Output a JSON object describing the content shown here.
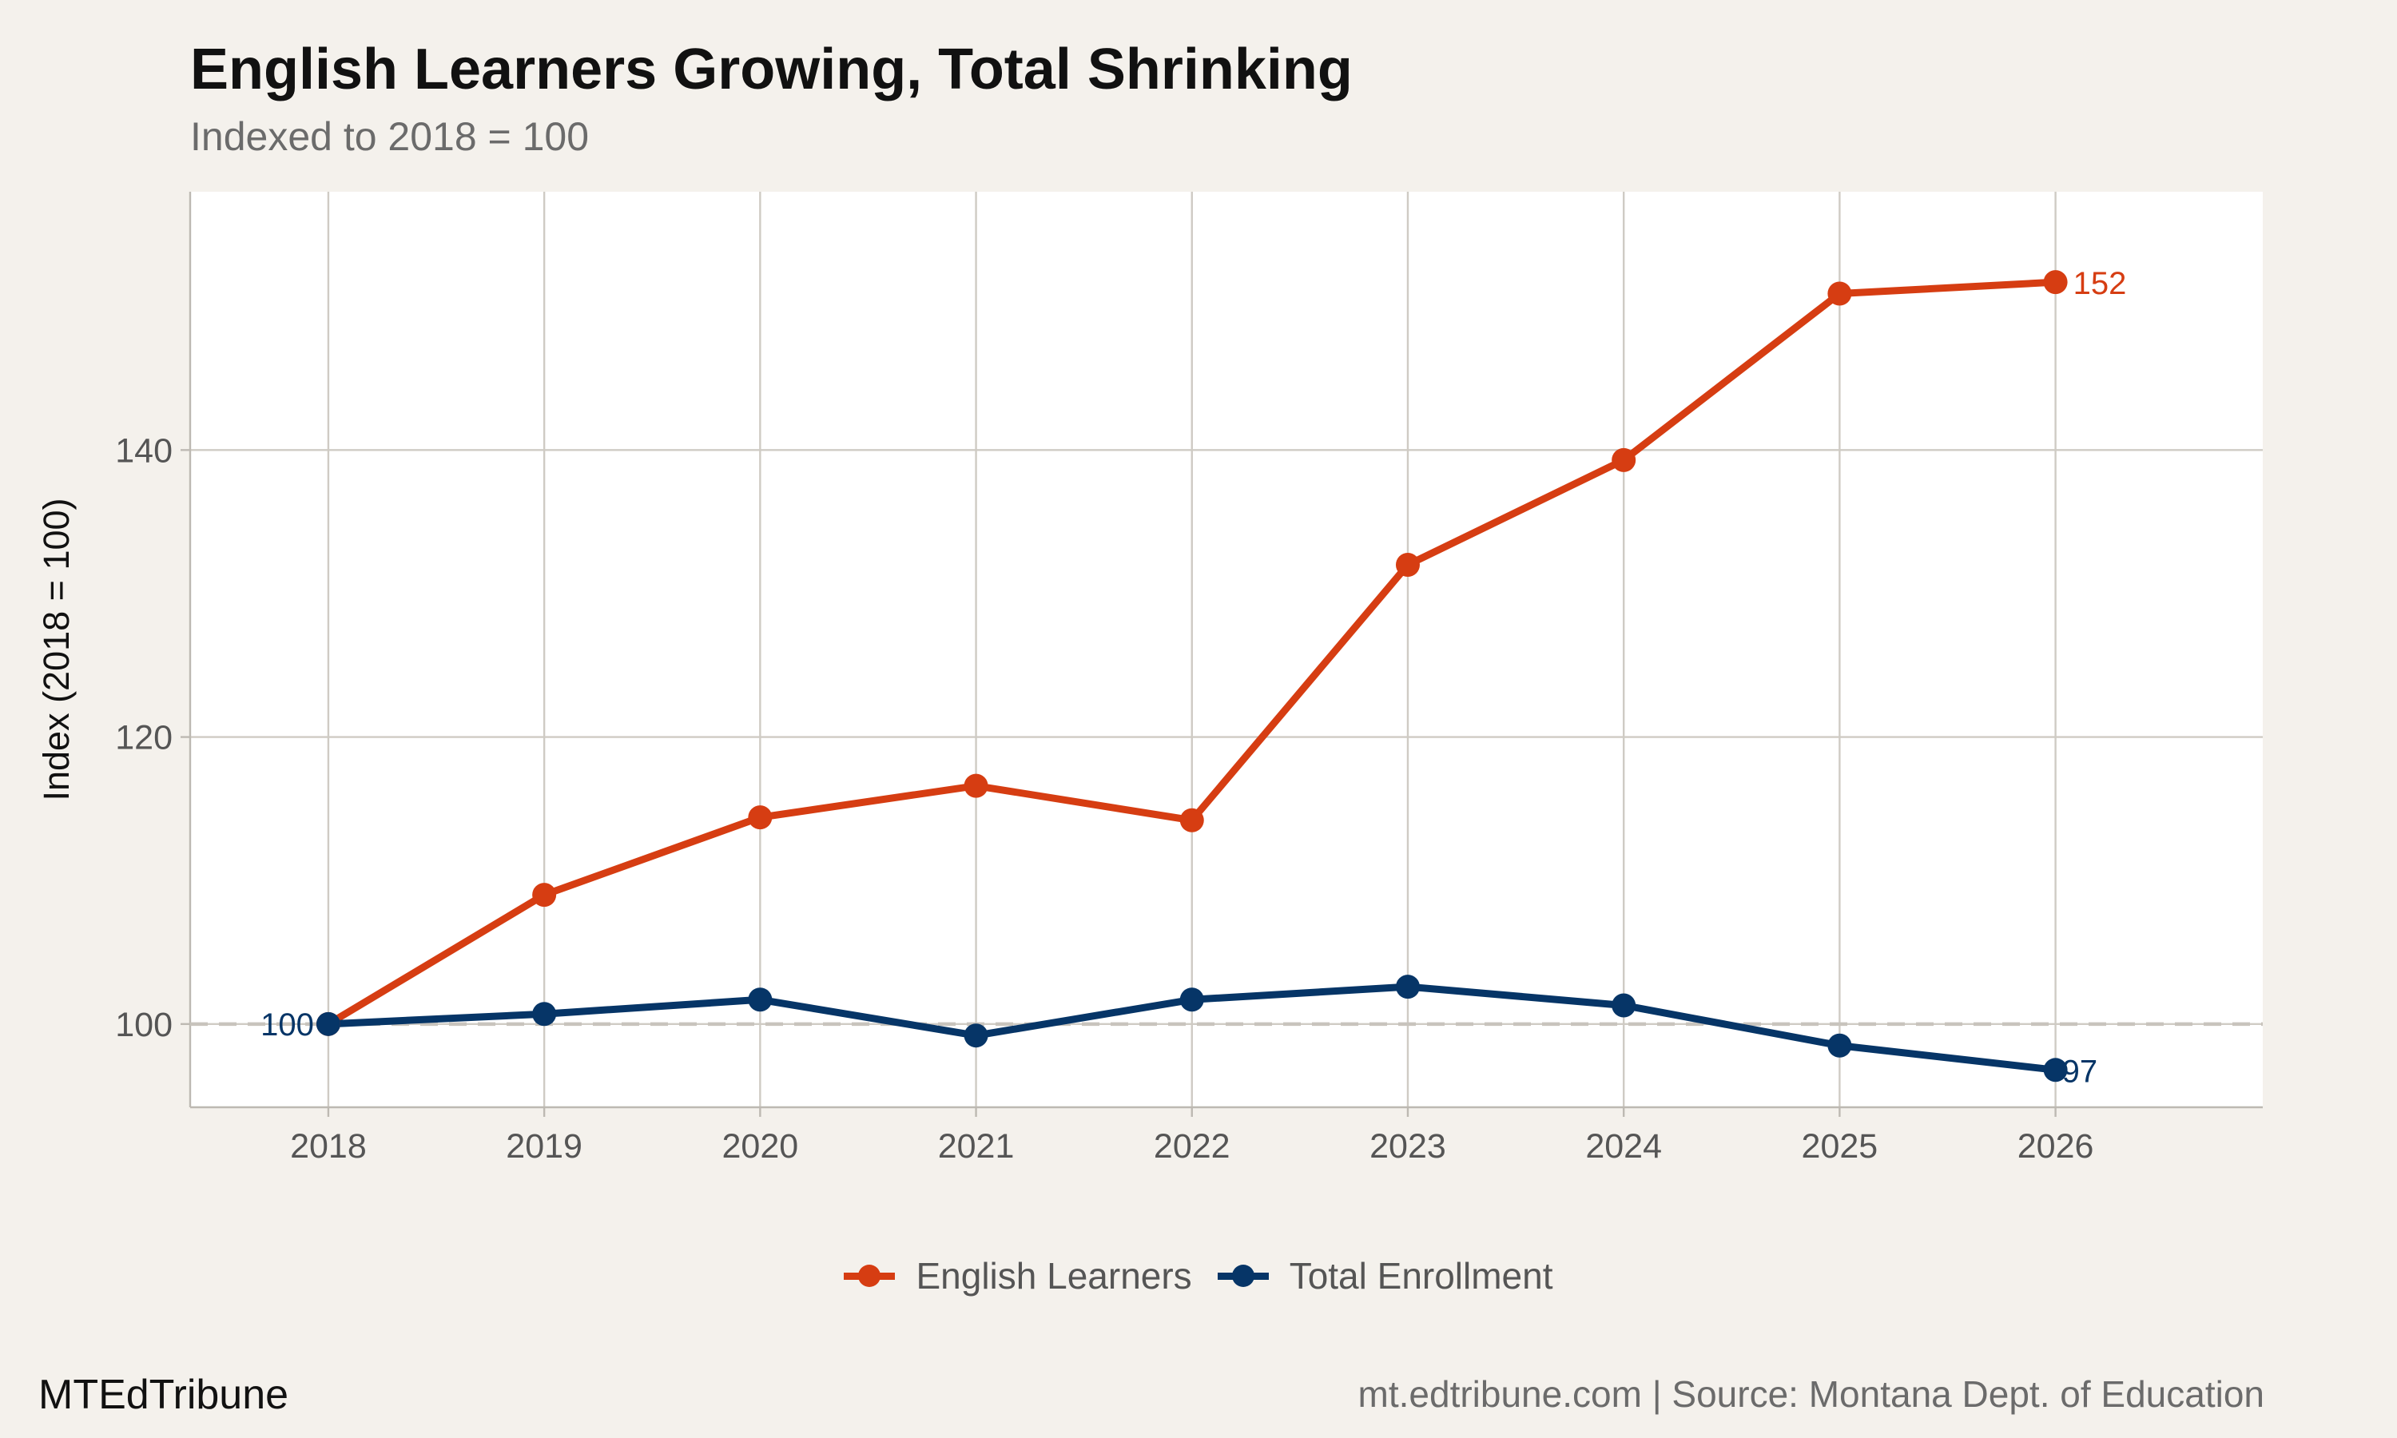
{
  "title": "English Learners Growing, Total Shrinking",
  "subtitle": "Indexed to 2018 = 100",
  "footer": {
    "brand": "MTEdTribune",
    "source": "mt.edtribune.com | Source: Montana Dept. of Education"
  },
  "colors": {
    "background": "#f4f1ec",
    "panel": "#ffffff",
    "grid": "#cfcbc4",
    "english_learners": "#d63d12",
    "total_enrollment": "#063567",
    "reference_line": "#c8c4bd"
  },
  "chart_data": {
    "type": "line",
    "x": [
      2018,
      2019,
      2020,
      2021,
      2022,
      2023,
      2024,
      2025,
      2026
    ],
    "x_tick_labels": [
      "2018",
      "2019",
      "2020",
      "2021",
      "2022",
      "2023",
      "2024",
      "2025",
      "2026"
    ],
    "xlim": [
      2017.36,
      2026.96
    ],
    "ylabel": "Index (2018 = 100)",
    "xlabel": "",
    "ylim": [
      94.2,
      158.0
    ],
    "y_ticks": [
      100,
      120,
      140
    ],
    "y_tick_labels": [
      "100",
      "120",
      "140"
    ],
    "grid": true,
    "reference_line": {
      "y": 100,
      "style": "dashed"
    },
    "legend_position": "bottom",
    "series": [
      {
        "name": "English Learners",
        "color": "#d63d12",
        "values": [
          100,
          109,
          114.4,
          116.6,
          114.2,
          132,
          139.3,
          150.9,
          151.7
        ],
        "end_label": "152"
      },
      {
        "name": "Total Enrollment",
        "color": "#063567",
        "values": [
          100,
          100.7,
          101.7,
          99.2,
          101.7,
          102.6,
          101.3,
          98.5,
          96.8
        ],
        "start_label": "100",
        "end_label": "97"
      }
    ]
  }
}
